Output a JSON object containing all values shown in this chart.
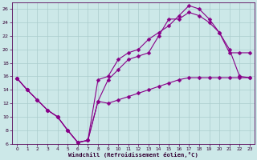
{
  "xlabel": "Windchill (Refroidissement éolien,°C)",
  "xlim": [
    -0.5,
    23.5
  ],
  "ylim": [
    6,
    27
  ],
  "yticks": [
    6,
    8,
    10,
    12,
    14,
    16,
    18,
    20,
    22,
    24,
    26
  ],
  "xticks": [
    0,
    1,
    2,
    3,
    4,
    5,
    6,
    7,
    8,
    9,
    10,
    11,
    12,
    13,
    14,
    15,
    16,
    17,
    18,
    19,
    20,
    21,
    22,
    23
  ],
  "background_color": "#cce8e8",
  "grid_color": "#aacccc",
  "line_color": "#880088",
  "line1_x": [
    0,
    1,
    2,
    3,
    4,
    5,
    6,
    7,
    8,
    9,
    10,
    11,
    12,
    13,
    14,
    15,
    16,
    17,
    18,
    19,
    20,
    21,
    22,
    23
  ],
  "line1_y": [
    15.7,
    14.0,
    12.5,
    11.0,
    10.0,
    8.0,
    6.2,
    6.5,
    12.3,
    12.0,
    12.5,
    13.0,
    13.5,
    14.0,
    14.5,
    15.0,
    15.5,
    15.8,
    15.8,
    15.8,
    15.8,
    15.8,
    15.8,
    15.8
  ],
  "line2_x": [
    0,
    1,
    2,
    3,
    4,
    5,
    6,
    7,
    8,
    9,
    10,
    11,
    12,
    13,
    14,
    15,
    16,
    17,
    18,
    19,
    20,
    21,
    22,
    23
  ],
  "line2_y": [
    15.7,
    14.0,
    12.5,
    11.0,
    10.0,
    8.0,
    6.2,
    6.5,
    12.3,
    15.5,
    17.0,
    18.5,
    19.0,
    19.5,
    22.0,
    24.5,
    24.5,
    25.5,
    25.0,
    24.0,
    22.5,
    19.5,
    19.5,
    19.5
  ],
  "line3_x": [
    0,
    1,
    2,
    3,
    4,
    5,
    6,
    7,
    8,
    9,
    10,
    11,
    12,
    13,
    14,
    15,
    16,
    17,
    18,
    19,
    20,
    21,
    22,
    23
  ],
  "line3_y": [
    15.7,
    14.0,
    12.5,
    11.0,
    10.0,
    8.0,
    6.2,
    6.5,
    15.5,
    16.0,
    18.5,
    19.5,
    20.0,
    21.5,
    22.5,
    23.5,
    25.0,
    26.5,
    26.0,
    24.5,
    22.5,
    20.0,
    16.0,
    15.8
  ]
}
